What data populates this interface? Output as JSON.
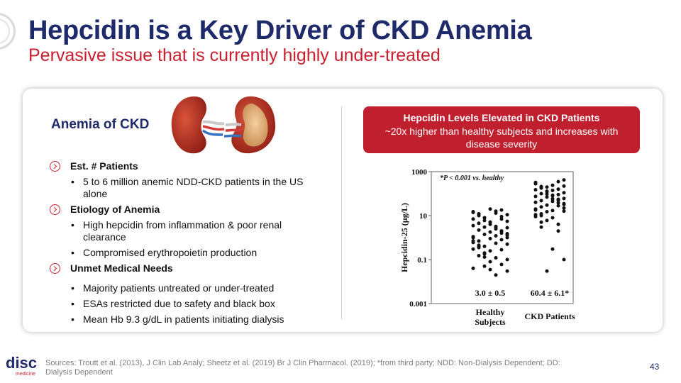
{
  "title": "Hepcidin is a Key Driver of CKD Anemia",
  "subtitle": "Pervasive issue that is currently highly under-treated",
  "left_panel": {
    "heading": "Anemia of CKD",
    "sections": [
      {
        "label": "Est. # Patients",
        "bullets": [
          "5 to 6 million anemic NDD-CKD patients in the US alone"
        ]
      },
      {
        "label": "Etiology of Anemia",
        "bullets": [
          "High hepcidin from inflammation & poor renal clearance",
          "Compromised erythropoietin production"
        ]
      },
      {
        "label": "Unmet Medical Needs",
        "bullets": [
          "Majority patients untreated or under-treated",
          "ESAs restricted due to safety and black box",
          "Mean Hb 9.3 g/dL in patients initiating dialysis"
        ]
      }
    ]
  },
  "callout": {
    "heading": "Hepcidin Levels Elevated in CKD Patients",
    "body": "~20x higher than healthy subjects and increases with disease severity"
  },
  "chart_data": {
    "type": "scatter",
    "ylabel": "Hepcidin-25 (µg/L)",
    "yscale": "log",
    "ylim": [
      0.001,
      1000
    ],
    "yticks": [
      "1000",
      "10",
      "0.1",
      "0.001"
    ],
    "categories": [
      "Healthy Subjects",
      "CKD Patients"
    ],
    "annotation": "*P < 0.001 vs. healthy",
    "group_labels": [
      "3.0 ± 0.5",
      "60.4 ± 6.1*"
    ],
    "series": [
      {
        "name": "Healthy Subjects",
        "values": [
          15,
          12,
          8,
          5,
          3,
          2,
          1.5,
          1,
          0.7,
          0.4,
          0.25,
          0.12,
          0.06,
          0.03,
          14,
          10,
          6,
          4,
          2.5,
          1.6,
          1,
          0.6,
          0.35,
          0.2,
          0.08,
          0.02,
          18,
          11,
          7,
          4.5,
          3,
          1.8,
          1.2,
          0.8,
          0.5,
          0.3,
          0.15,
          0.05,
          20,
          13,
          9,
          5.5,
          3.5,
          2.2,
          1.4,
          0.9,
          0.55,
          0.28,
          0.1,
          0.04,
          12,
          8,
          5,
          3.2,
          2,
          1.3,
          0.7,
          0.45,
          0.18,
          0.035,
          16,
          7,
          2.8,
          1.1,
          0.4,
          0.13
        ]
      },
      {
        "name": "CKD Patients",
        "values": [
          280,
          180,
          120,
          80,
          55,
          35,
          20,
          12,
          6,
          0.3,
          350,
          220,
          150,
          100,
          70,
          45,
          28,
          16,
          9,
          3,
          200,
          140,
          90,
          60,
          40,
          25,
          15,
          8,
          2,
          420,
          300,
          190,
          130,
          85,
          50,
          32,
          18,
          10,
          0.03,
          240,
          160,
          110,
          75,
          48,
          30,
          17,
          4,
          0.1,
          320,
          210,
          95,
          58,
          38,
          22,
          11,
          5
        ]
      }
    ]
  },
  "footer": {
    "sources": "Sources: Troutt et al. (2013), J Clin Lab Analy; Sheetz et al. (2019) Br J Clin Pharmacol. (2019); *from third party; NDD: Non-Dialysis Dependent; DD: Dialysis Dependent",
    "page_number": "43",
    "logo_text": "disc",
    "logo_subtext": "medicine"
  },
  "colors": {
    "navy": "#1f2a6b",
    "red": "#c8202f",
    "callout": "#c01f2e"
  }
}
